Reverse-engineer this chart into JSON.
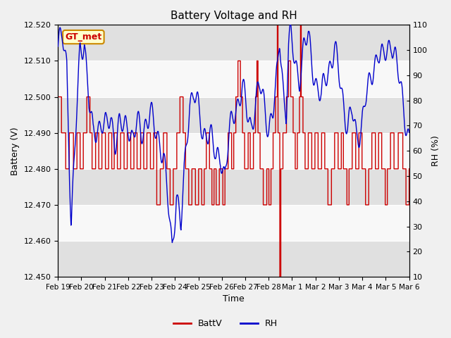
{
  "title": "Battery Voltage and RH",
  "xlabel": "Time",
  "ylabel_left": "Battery (V)",
  "ylabel_right": "RH (%)",
  "annotation": "GT_met",
  "x_tick_labels": [
    "Feb 19",
    "Feb 20",
    "Feb 21",
    "Feb 22",
    "Feb 23",
    "Feb 24",
    "Feb 25",
    "Feb 26",
    "Feb 27",
    "Feb 28",
    "Mar 1",
    "Mar 2",
    "Mar 3",
    "Mar 4",
    "Mar 5",
    "Mar 6"
  ],
  "ylim_left": [
    12.45,
    12.52
  ],
  "ylim_right": [
    10,
    110
  ],
  "yticks_left": [
    12.45,
    12.46,
    12.47,
    12.48,
    12.49,
    12.5,
    12.51,
    12.52
  ],
  "yticks_right": [
    10,
    20,
    30,
    40,
    50,
    60,
    70,
    80,
    90,
    100,
    110
  ],
  "batt_color": "#cc0000",
  "rh_color": "#0000cc",
  "bg_color": "#f0f0f0",
  "plot_bg_light": "#f8f8f8",
  "plot_bg_dark": "#e0e0e0",
  "annotation_bg": "#ffffcc",
  "annotation_border": "#cc8800",
  "annotation_text_color": "#cc0000",
  "legend_batt_label": "BattV",
  "legend_rh_label": "RH",
  "figsize": [
    6.4,
    4.8
  ],
  "dpi": 100
}
